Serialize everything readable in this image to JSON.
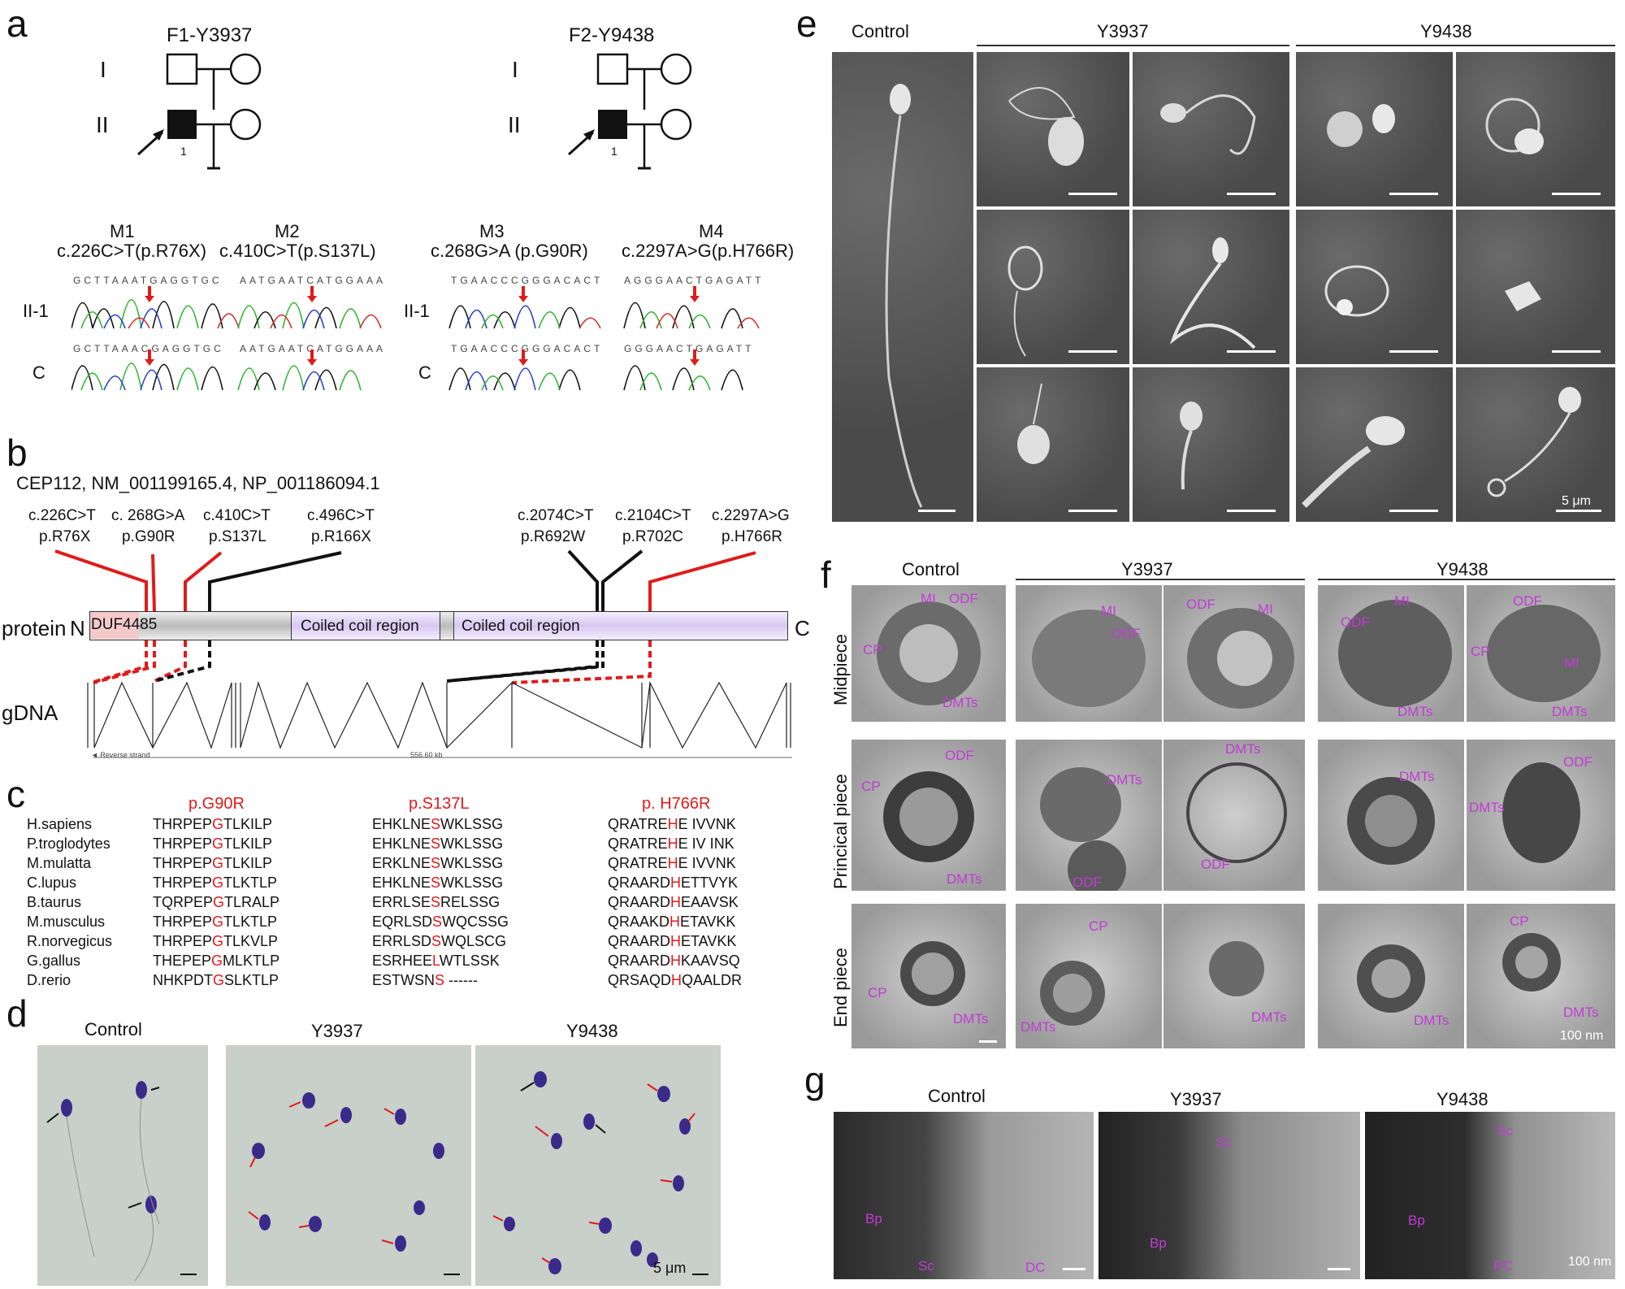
{
  "panels": {
    "a": {
      "label": "a",
      "families": [
        {
          "id": "F1-Y3937",
          "gen1": "I",
          "gen2": "II",
          "proband": "1"
        },
        {
          "id": "F2-Y9438",
          "gen1": "I",
          "gen2": "II",
          "proband": "1"
        }
      ],
      "mutations": [
        {
          "name": "M1",
          "change": "c.226C>T(p.R76X)",
          "seq": "GCTTAAATGAGGTGC"
        },
        {
          "name": "M2",
          "change": "c.410C>T(p.S137L)",
          "seq": "AATGAATCATGGAAA"
        },
        {
          "name": "M3",
          "change": "c.268G>A  (p.G90R)",
          "seq": "TGAACCCGGGACACT"
        },
        {
          "name": "M4",
          "change": "c.2297A>G(p.H766R)",
          "seq": "AGGGAACTGAGATT"
        }
      ],
      "seq_c": [
        "GCTTAAACGAGGTGC",
        "AATGAATCATGGAAA",
        "TGAACCCGGGACACT",
        "GGGAACTGAGATT"
      ],
      "row_labels": [
        "II-1",
        "C",
        "II-1",
        "C"
      ]
    },
    "b": {
      "label": "b",
      "gene": "CEP112, NM_001199165.4, NP_001186094.1",
      "variants": [
        {
          "c": "c.226C>T",
          "p": "p.R76X",
          "color": "#e01b1b"
        },
        {
          "c": "c. 268G>A",
          "p": "p.G90R",
          "color": "#e01b1b"
        },
        {
          "c": "c.410C>T",
          "p": "p.S137L",
          "color": "#e01b1b"
        },
        {
          "c": "c.496C>T",
          "p": "p.R166X",
          "color": "#111111"
        },
        {
          "c": "c.2074C>T",
          "p": "p.R692W",
          "color": "#111111"
        },
        {
          "c": "c.2104C>T",
          "p": "p.R702C",
          "color": "#111111"
        },
        {
          "c": "c.2297A>G",
          "p": "p.H766R",
          "color": "#e01b1b"
        }
      ],
      "protein_label": "protein",
      "n_term": "N",
      "c_term": "C",
      "domains": [
        "DUF4485",
        "Coiled coil region",
        "Coiled coil region"
      ],
      "gdna_label": "gDNA",
      "strand": "Reverse strand",
      "length": "556.60 kb"
    },
    "c": {
      "label": "c",
      "headers": [
        "p.G90R",
        "p.S137L",
        "p. H766R"
      ],
      "species": [
        "H.sapiens",
        "P.troglodytes",
        "M.mulatta",
        "C.lupus",
        "B.taurus",
        "M.musculus",
        "R.norvegicus",
        "G.gallus",
        "D.rerio"
      ],
      "seq1": [
        [
          "THRPEP",
          "G",
          "TLKILP"
        ],
        [
          "THRPEP",
          "G",
          "TLKILP"
        ],
        [
          "THRPEP",
          "G",
          "TLKILP"
        ],
        [
          "THRPEP",
          "G",
          "TLKTLP"
        ],
        [
          "TQRPEP",
          "G",
          "TLRALP"
        ],
        [
          "THRPEP",
          "G",
          "TLKTLP"
        ],
        [
          "THRPEP",
          "G",
          "TLKVLP"
        ],
        [
          "THEPEP",
          "G",
          "MLKTLP"
        ],
        [
          "NHKPDT",
          "G",
          "SLKTLP"
        ]
      ],
      "seq2": [
        [
          "EHKLNE",
          "S",
          "WKLSSG"
        ],
        [
          "EHKLNE",
          "S",
          "WKLSSG"
        ],
        [
          "ERKLNE",
          "S",
          "WKLSSG"
        ],
        [
          "EHKLNE",
          "S",
          "WKLSSG"
        ],
        [
          "ERRLSE",
          "S",
          "RELSSG"
        ],
        [
          "EQRLSD",
          "S",
          "WQCSSG"
        ],
        [
          "ERRLSD",
          "S",
          "WQLSCG"
        ],
        [
          "ESRHEE",
          "L",
          "WTLSSK"
        ],
        [
          "ESTWSN",
          "S",
          " ------"
        ]
      ],
      "seq3": [
        [
          "QRATRE",
          "H",
          "E IVVNK"
        ],
        [
          "QRATRE",
          "H",
          "E IV INK"
        ],
        [
          "QRATRE",
          "H",
          "E IVVNK"
        ],
        [
          "QRAARD",
          "H",
          "ETTVYK"
        ],
        [
          "QRAARD",
          "H",
          "EAAVSK"
        ],
        [
          "QRAAKD",
          "H",
          "ETAVKK"
        ],
        [
          "QRAARD",
          "H",
          "ETAVKK"
        ],
        [
          "QRAARD",
          "H",
          "KAAVSQ"
        ],
        [
          "QRSAQD",
          "H",
          "QAALDR"
        ]
      ]
    },
    "d": {
      "label": "d",
      "titles": [
        "Control",
        "Y3937",
        "Y9438"
      ],
      "scale": "5 μm"
    },
    "e": {
      "label": "e",
      "titles": [
        "Control",
        "Y3937",
        "Y9438"
      ],
      "scale": "5 μm"
    },
    "f": {
      "label": "f",
      "titles": [
        "Control",
        "Y3937",
        "Y9438"
      ],
      "rows": [
        "Midpiece",
        "Princical piece",
        "End piece"
      ],
      "scale": "100 nm",
      "annotations": {
        "MI": "MI",
        "ODF": "ODF",
        "CP": "CP",
        "DMTs": "DMTs"
      }
    },
    "g": {
      "label": "g",
      "titles": [
        "Control",
        "Y3937",
        "Y9438"
      ],
      "annotations": {
        "Bp": "Bp",
        "Sc": "Sc",
        "DC": "DC",
        "PC": "PC"
      },
      "scale": "100 nm"
    }
  }
}
